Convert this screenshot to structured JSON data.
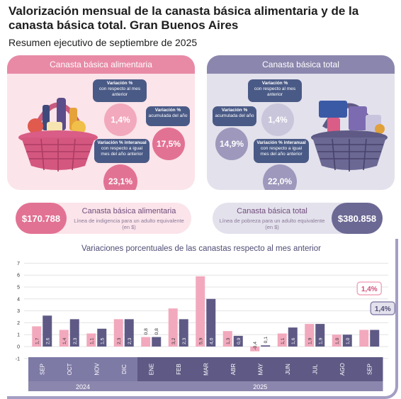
{
  "title": "Valorización mensual de la canasta básica alimentaria y de la canasta básica total. Gran Buenos Aires",
  "subtitle": "Resumen ejecutivo de septiembre de 2025",
  "cba": {
    "header": "Canasta básica alimentaria",
    "mensual": {
      "label": "Variación %",
      "sub": "con respecto al mes anterior",
      "value": "1,4%"
    },
    "acumulada": {
      "label": "Variación %",
      "sub": "acumulada del año",
      "value": "17,5%"
    },
    "interanual": {
      "label": "Variación % interanual",
      "sub": "con respecto a igual mes del año anterior",
      "value": "23,1%"
    },
    "price": "$170.788",
    "name": "Canasta básica alimentaria",
    "desc": "Línea de indigencia para un adulto equivalente (en $)"
  },
  "cbt": {
    "header": "Canasta básica total",
    "mensual": {
      "label": "Variación %",
      "sub": "con respecto al mes anterior",
      "value": "1,4%"
    },
    "acumulada": {
      "label": "Variación %",
      "sub": "acumulada del año",
      "value": "14,9%"
    },
    "interanual": {
      "label": "Variación % interanual",
      "sub": "con respecto a igual mes del año anterior",
      "value": "22,0%"
    },
    "price": "$380.858",
    "name": "Canasta básica total",
    "desc": "Línea de pobreza para un adulto equivalente (en $)"
  },
  "colors": {
    "cba": "#f2a9bd",
    "cbt": "#5e5a85",
    "axis_band": "#5e5a85",
    "year_band_2024": "#7e7aa6"
  },
  "chart_data": {
    "type": "bar",
    "title": "Variaciones porcentuales de las canastas respecto al mes anterior",
    "categories": [
      "SEP",
      "OCT",
      "NOV",
      "DIC",
      "ENE",
      "FEB",
      "MAR",
      "ABR",
      "MAY",
      "JUN",
      "JUL",
      "AGO",
      "SEP"
    ],
    "years": [
      {
        "label": "2024",
        "span": [
          0,
          3
        ]
      },
      {
        "label": "2025",
        "span": [
          4,
          12
        ]
      }
    ],
    "series": [
      {
        "key": "cba",
        "values": [
          1.7,
          1.4,
          1.1,
          2.3,
          0.8,
          3.2,
          5.9,
          1.3,
          -0.4,
          1.1,
          1.9,
          1.0,
          1.4
        ]
      },
      {
        "key": "cbt",
        "values": [
          2.6,
          2.3,
          1.5,
          2.3,
          0.8,
          2.3,
          4.0,
          0.9,
          0.1,
          1.6,
          1.9,
          1.0,
          1.4
        ]
      }
    ],
    "bar_labels": {
      "cba": [
        "1,7",
        "1,4",
        "1,1",
        "2,3",
        "0,8",
        "3,2",
        "5,9",
        "1,3",
        "-0,4",
        "1,1",
        "1,9",
        "1,0"
      ],
      "cbt": [
        "2,6",
        "2,3",
        "1,5",
        "2,3",
        "0,8",
        "2,3",
        "4,0",
        "0,9",
        "0,1",
        "1,6",
        "1,9",
        "1,0"
      ]
    },
    "callouts": {
      "cba": "1,4%",
      "cbt": "1,4%"
    },
    "yticks": [
      -1,
      0,
      1,
      2,
      3,
      4,
      5,
      6,
      7
    ],
    "ylim": [
      -1,
      7
    ],
    "grid": true
  }
}
